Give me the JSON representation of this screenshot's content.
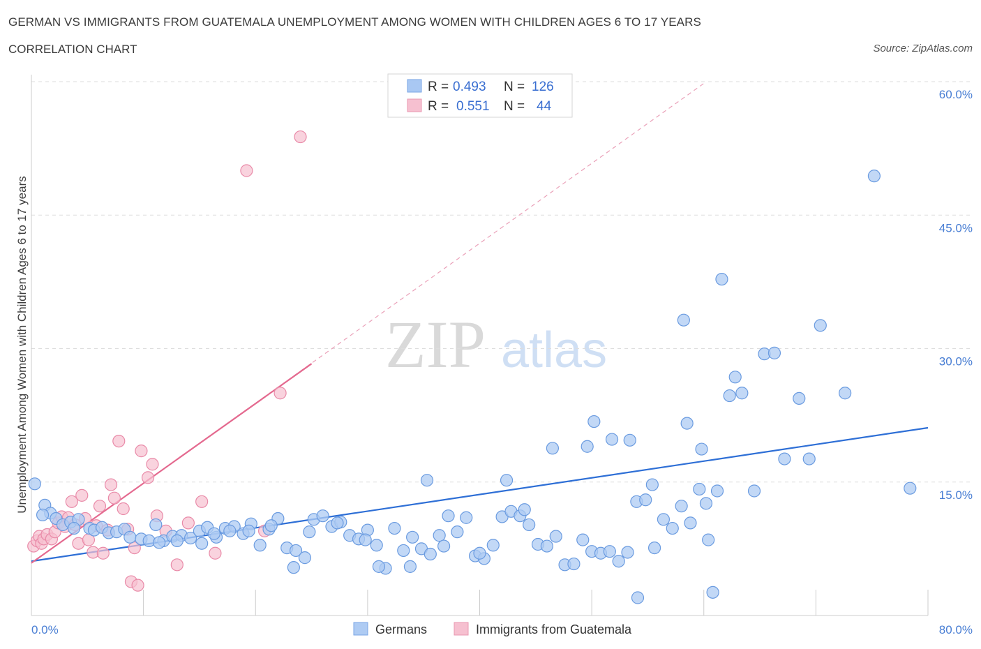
{
  "header": {
    "title": "GERMAN VS IMMIGRANTS FROM GUATEMALA UNEMPLOYMENT AMONG WOMEN WITH CHILDREN AGES 6 TO 17 YEARS",
    "subtitle": "CORRELATION CHART",
    "source": "Source: ZipAtlas.com"
  },
  "watermark": {
    "zip": "ZIP",
    "atlas": "atlas"
  },
  "legend": {
    "r_label": "R =",
    "n_label": "N =",
    "rows": [
      {
        "r": "0.493",
        "n": "126",
        "color": "#a9c8f3"
      },
      {
        "r": "0.551",
        "n": "44",
        "color": "#f6b8cb"
      }
    ]
  },
  "colors": {
    "germans_fill": "#aecbf3",
    "germans_stroke": "#6a9be0",
    "germans_line": "#2e6fd6",
    "guatemala_fill": "#f6c0d0",
    "guatemala_stroke": "#e98aa8",
    "guatemala_line": "#e4698f",
    "axis_label": "#4a7fd4"
  },
  "chart_data": {
    "type": "scatter",
    "title": "GERMAN VS IMMIGRANTS FROM GUATEMALA UNEMPLOYMENT AMONG WOMEN WITH CHILDREN AGES 6 TO 17 YEARS",
    "subtitle": "CORRELATION CHART",
    "xlabel": "",
    "ylabel": "Unemployment Among Women with Children Ages 6 to 17 years",
    "xlim": [
      0,
      80
    ],
    "ylim": [
      0,
      60
    ],
    "x_tick_labels": [
      "0.0%",
      "80.0%"
    ],
    "y_ticks": [
      15,
      30,
      45,
      60
    ],
    "y_tick_labels": [
      "15.0%",
      "30.0%",
      "45.0%",
      "60.0%"
    ],
    "grid": true,
    "legend_position": "top-center",
    "series": [
      {
        "name": "Germans",
        "r": 0.493,
        "n": 126,
        "trend": {
          "x": [
            0,
            80
          ],
          "y": [
            6.1,
            21.1
          ]
        },
        "points": [
          [
            0.3,
            14.8
          ],
          [
            1.2,
            12.4
          ],
          [
            1.7,
            11.5
          ],
          [
            1.0,
            11.3
          ],
          [
            2.2,
            10.9
          ],
          [
            2.8,
            10.2
          ],
          [
            3.5,
            10.5
          ],
          [
            4.2,
            10.8
          ],
          [
            3.8,
            9.8
          ],
          [
            5.2,
            9.8
          ],
          [
            5.6,
            9.6
          ],
          [
            6.3,
            9.9
          ],
          [
            6.9,
            9.3
          ],
          [
            7.6,
            9.4
          ],
          [
            8.3,
            9.7
          ],
          [
            8.8,
            8.8
          ],
          [
            9.8,
            8.6
          ],
          [
            10.5,
            8.4
          ],
          [
            11.1,
            10.2
          ],
          [
            11.8,
            8.4
          ],
          [
            12.6,
            8.9
          ],
          [
            13.4,
            9.0
          ],
          [
            14.2,
            8.7
          ],
          [
            15.0,
            9.5
          ],
          [
            15.7,
            9.9
          ],
          [
            16.5,
            8.8
          ],
          [
            17.3,
            9.8
          ],
          [
            18.1,
            10.0
          ],
          [
            18.9,
            9.2
          ],
          [
            19.6,
            10.3
          ],
          [
            20.4,
            7.9
          ],
          [
            21.2,
            9.7
          ],
          [
            22.0,
            10.9
          ],
          [
            22.8,
            7.6
          ],
          [
            23.6,
            7.3
          ],
          [
            24.4,
            6.5
          ],
          [
            25.2,
            10.8
          ],
          [
            26.0,
            11.2
          ],
          [
            26.8,
            10.0
          ],
          [
            27.6,
            10.5
          ],
          [
            28.4,
            9.0
          ],
          [
            29.2,
            8.6
          ],
          [
            30.0,
            9.6
          ],
          [
            30.8,
            7.9
          ],
          [
            31.6,
            5.3
          ],
          [
            32.4,
            9.8
          ],
          [
            33.2,
            7.3
          ],
          [
            34.0,
            8.8
          ],
          [
            34.8,
            7.5
          ],
          [
            35.6,
            6.9
          ],
          [
            36.4,
            9.0
          ],
          [
            37.2,
            11.2
          ],
          [
            38.0,
            9.4
          ],
          [
            38.8,
            11.0
          ],
          [
            39.6,
            6.7
          ],
          [
            40.4,
            6.4
          ],
          [
            41.2,
            7.9
          ],
          [
            42.0,
            11.1
          ],
          [
            42.8,
            11.7
          ],
          [
            43.6,
            11.2
          ],
          [
            44.4,
            10.2
          ],
          [
            45.2,
            8.0
          ],
          [
            46.0,
            7.8
          ],
          [
            46.8,
            8.9
          ],
          [
            47.6,
            5.7
          ],
          [
            48.4,
            5.8
          ],
          [
            49.2,
            8.5
          ],
          [
            50.0,
            7.2
          ],
          [
            50.8,
            7.0
          ],
          [
            51.6,
            7.2
          ],
          [
            52.4,
            6.1
          ],
          [
            53.2,
            7.1
          ],
          [
            54.0,
            12.8
          ],
          [
            54.8,
            13.0
          ],
          [
            55.6,
            7.6
          ],
          [
            56.4,
            10.8
          ],
          [
            57.2,
            9.8
          ],
          [
            58.0,
            12.3
          ],
          [
            58.8,
            10.4
          ],
          [
            59.6,
            14.2
          ],
          [
            60.4,
            8.5
          ],
          [
            61.2,
            14.0
          ],
          [
            23.4,
            5.4
          ],
          [
            31.0,
            5.5
          ],
          [
            35.3,
            15.2
          ],
          [
            42.4,
            15.2
          ],
          [
            44.0,
            11.9
          ],
          [
            46.5,
            18.8
          ],
          [
            50.2,
            21.8
          ],
          [
            49.6,
            19.0
          ],
          [
            51.8,
            19.8
          ],
          [
            53.4,
            19.7
          ],
          [
            54.1,
            2.0
          ],
          [
            58.2,
            33.2
          ],
          [
            58.5,
            21.6
          ],
          [
            59.8,
            18.7
          ],
          [
            60.8,
            2.6
          ],
          [
            55.4,
            14.7
          ],
          [
            60.2,
            12.6
          ],
          [
            61.6,
            37.8
          ],
          [
            62.3,
            24.7
          ],
          [
            62.8,
            26.8
          ],
          [
            63.4,
            25.0
          ],
          [
            64.5,
            14.0
          ],
          [
            65.4,
            29.4
          ],
          [
            66.3,
            29.5
          ],
          [
            67.2,
            17.6
          ],
          [
            68.5,
            24.4
          ],
          [
            69.4,
            17.6
          ],
          [
            70.4,
            32.6
          ],
          [
            72.6,
            25.0
          ],
          [
            75.2,
            49.4
          ],
          [
            78.4,
            14.3
          ],
          [
            11.4,
            8.2
          ],
          [
            13.0,
            8.4
          ],
          [
            15.2,
            8.1
          ],
          [
            16.3,
            9.2
          ],
          [
            17.7,
            9.5
          ],
          [
            19.4,
            9.5
          ],
          [
            21.4,
            10.1
          ],
          [
            24.8,
            9.4
          ],
          [
            27.3,
            10.4
          ],
          [
            29.8,
            8.5
          ],
          [
            33.8,
            5.5
          ],
          [
            36.8,
            7.8
          ],
          [
            40.0,
            7.0
          ]
        ]
      },
      {
        "name": "Immigrants from Guatemala",
        "r": 0.551,
        "n": 44,
        "trend": {
          "x": [
            0,
            25
          ],
          "y": [
            5.9,
            28.3
          ]
        },
        "trend_extended": {
          "x": [
            0,
            60
          ],
          "y": [
            5.9,
            59.8
          ]
        },
        "points": [
          [
            0.2,
            7.8
          ],
          [
            0.5,
            8.4
          ],
          [
            0.7,
            8.9
          ],
          [
            0.9,
            8.1
          ],
          [
            1.1,
            8.6
          ],
          [
            1.4,
            9.1
          ],
          [
            1.8,
            8.6
          ],
          [
            2.1,
            9.4
          ],
          [
            2.4,
            10.4
          ],
          [
            2.7,
            11.1
          ],
          [
            3.0,
            10.0
          ],
          [
            3.3,
            11.0
          ],
          [
            3.6,
            12.8
          ],
          [
            3.9,
            10.2
          ],
          [
            4.2,
            8.1
          ],
          [
            4.5,
            13.5
          ],
          [
            4.8,
            10.9
          ],
          [
            5.1,
            8.5
          ],
          [
            5.5,
            7.1
          ],
          [
            5.8,
            10.1
          ],
          [
            6.1,
            12.3
          ],
          [
            6.4,
            7.0
          ],
          [
            6.8,
            9.6
          ],
          [
            7.1,
            14.7
          ],
          [
            7.4,
            13.2
          ],
          [
            7.8,
            19.6
          ],
          [
            8.2,
            12.0
          ],
          [
            8.6,
            9.7
          ],
          [
            8.9,
            3.8
          ],
          [
            9.2,
            7.6
          ],
          [
            9.5,
            3.4
          ],
          [
            9.8,
            18.5
          ],
          [
            10.4,
            15.5
          ],
          [
            10.8,
            17.0
          ],
          [
            11.2,
            11.2
          ],
          [
            12.0,
            9.5
          ],
          [
            13.0,
            5.7
          ],
          [
            14.0,
            10.4
          ],
          [
            15.2,
            12.8
          ],
          [
            16.4,
            7.0
          ],
          [
            19.2,
            50.0
          ],
          [
            20.8,
            9.5
          ],
          [
            22.2,
            25.0
          ],
          [
            24.0,
            53.8
          ]
        ]
      }
    ]
  },
  "bottom_legend": {
    "items": [
      {
        "label": "Germans"
      },
      {
        "label": "Immigrants from Guatemala"
      }
    ]
  }
}
